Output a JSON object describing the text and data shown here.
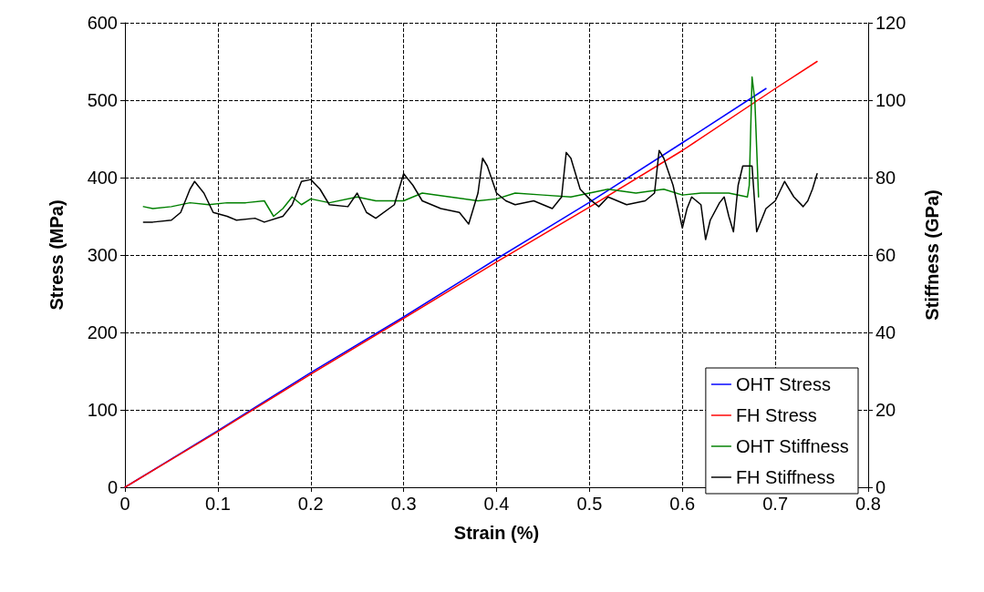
{
  "chart_data": {
    "type": "line",
    "xlabel": "Strain (%)",
    "ylabel": "Stress (MPa)",
    "y2label": "Stiffness (GPa)",
    "xlim": [
      0,
      0.8
    ],
    "xticks": [
      0,
      0.1,
      0.2,
      0.3,
      0.4,
      0.5,
      0.6,
      0.7,
      0.8
    ],
    "ylim": [
      0,
      600
    ],
    "yticks": [
      0,
      100,
      200,
      300,
      400,
      500,
      600
    ],
    "y2lim": [
      0,
      120
    ],
    "y2ticks": [
      0,
      20,
      40,
      60,
      80,
      100,
      120
    ],
    "grid": true,
    "legend": "bottom right",
    "marker": "none",
    "line_style": "solid",
    "series": [
      {
        "name": "OHT Stress",
        "color": "#0000ff",
        "x": [
          0,
          0.1,
          0.2,
          0.3,
          0.4,
          0.5,
          0.6,
          0.69
        ],
        "values": [
          0,
          73,
          148,
          220,
          295,
          368,
          445,
          515
        ]
      },
      {
        "name": "FH Stress",
        "color": "#ff0000",
        "x": [
          0,
          0.1,
          0.2,
          0.3,
          0.4,
          0.5,
          0.6,
          0.7,
          0.745
        ],
        "values": [
          0,
          72,
          146,
          218,
          291,
          362,
          435,
          515,
          550
        ]
      },
      {
        "name": "OHT Stiffness",
        "color": "#008000",
        "axis": "y2",
        "x": [
          0.02,
          0.03,
          0.05,
          0.07,
          0.09,
          0.11,
          0.13,
          0.15,
          0.16,
          0.17,
          0.18,
          0.19,
          0.2,
          0.22,
          0.25,
          0.27,
          0.3,
          0.32,
          0.35,
          0.38,
          0.4,
          0.42,
          0.45,
          0.48,
          0.5,
          0.52,
          0.55,
          0.58,
          0.6,
          0.62,
          0.65,
          0.67,
          0.672,
          0.675,
          0.678,
          0.682
        ],
        "values": [
          72.5,
          72,
          72.5,
          73.5,
          73,
          73.5,
          73.5,
          74,
          70,
          72,
          75,
          73,
          74.5,
          73.5,
          75,
          74,
          74,
          76,
          75,
          74,
          74.5,
          76,
          75.5,
          75,
          76,
          77,
          76,
          77,
          75.5,
          76,
          76,
          75,
          78,
          106,
          100,
          75
        ]
      },
      {
        "name": "FH Stiffness",
        "color": "#000000",
        "axis": "y2",
        "x": [
          0.02,
          0.03,
          0.05,
          0.06,
          0.07,
          0.075,
          0.085,
          0.095,
          0.11,
          0.12,
          0.14,
          0.15,
          0.17,
          0.18,
          0.19,
          0.2,
          0.21,
          0.22,
          0.24,
          0.25,
          0.26,
          0.27,
          0.29,
          0.3,
          0.31,
          0.32,
          0.34,
          0.36,
          0.37,
          0.38,
          0.385,
          0.39,
          0.4,
          0.41,
          0.42,
          0.44,
          0.46,
          0.47,
          0.475,
          0.48,
          0.49,
          0.5,
          0.51,
          0.52,
          0.54,
          0.56,
          0.57,
          0.575,
          0.58,
          0.59,
          0.6,
          0.605,
          0.61,
          0.62,
          0.625,
          0.63,
          0.64,
          0.645,
          0.65,
          0.655,
          0.66,
          0.665,
          0.675,
          0.68,
          0.69,
          0.7,
          0.71,
          0.72,
          0.73,
          0.735,
          0.74,
          0.745
        ],
        "values": [
          68.5,
          68.5,
          69,
          71,
          77,
          79,
          76,
          71,
          70,
          69,
          69.5,
          68.5,
          70,
          73,
          79,
          79.5,
          77,
          73,
          72.5,
          76,
          71,
          69.5,
          73,
          81,
          78,
          74,
          72,
          71,
          68,
          76,
          85,
          83,
          76,
          74,
          73,
          74,
          72,
          75,
          86.5,
          85,
          77,
          74.5,
          72.5,
          75,
          73,
          74,
          76,
          87,
          85,
          78,
          67,
          72,
          75,
          73,
          64,
          69,
          73.5,
          75,
          70,
          66,
          78,
          83,
          83,
          66,
          72,
          74,
          79,
          75,
          72.5,
          74,
          77,
          81
        ]
      }
    ]
  }
}
